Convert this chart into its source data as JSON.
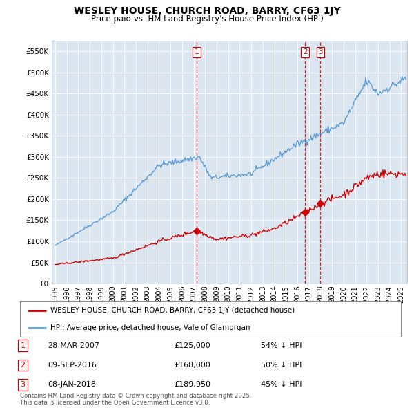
{
  "title": "WESLEY HOUSE, CHURCH ROAD, BARRY, CF63 1JY",
  "subtitle": "Price paid vs. HM Land Registry's House Price Index (HPI)",
  "sale_times": [
    2007.25,
    2016.667,
    2018.0
  ],
  "sale_prices": [
    125000,
    168000,
    189950
  ],
  "sale_labels": [
    "1",
    "2",
    "3"
  ],
  "legend_entries": [
    "WESLEY HOUSE, CHURCH ROAD, BARRY, CF63 1JY (detached house)",
    "HPI: Average price, detached house, Vale of Glamorgan"
  ],
  "table_rows": [
    [
      "1",
      "28-MAR-2007",
      "£125,000",
      "54% ↓ HPI"
    ],
    [
      "2",
      "09-SEP-2016",
      "£168,000",
      "50% ↓ HPI"
    ],
    [
      "3",
      "08-JAN-2018",
      "£189,950",
      "45% ↓ HPI"
    ]
  ],
  "footer": "Contains HM Land Registry data © Crown copyright and database right 2025.\nThis data is licensed under the Open Government Licence v3.0.",
  "hpi_color": "#5b9bd5",
  "sold_color": "#cc0000",
  "marker_line_color": "#cc0000",
  "chart_bg_color": "#dce6f1",
  "ylim": [
    0,
    575000
  ],
  "yticks": [
    0,
    50000,
    100000,
    150000,
    200000,
    250000,
    300000,
    350000,
    400000,
    450000,
    500000,
    550000
  ],
  "ytick_labels": [
    "£0",
    "£50K",
    "£100K",
    "£150K",
    "£200K",
    "£250K",
    "£300K",
    "£350K",
    "£400K",
    "£450K",
    "£500K",
    "£550K"
  ],
  "xlim_start": 1994.7,
  "xlim_end": 2025.5,
  "background_color": "#ffffff",
  "grid_color": "#ffffff"
}
